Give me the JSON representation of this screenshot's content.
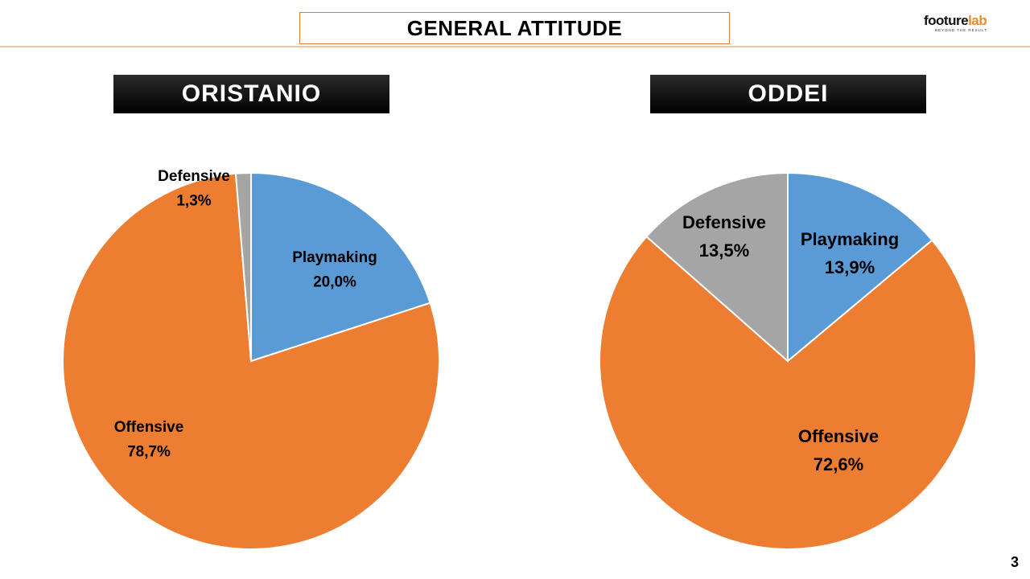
{
  "header": {
    "title": "GENERAL ATTITUDE",
    "logo_part1": "foot",
    "logo_part2": "ure",
    "logo_part3": "lab",
    "logo_tagline": "BEYOND THE RESULT"
  },
  "page_number": "3",
  "colors": {
    "playmaking": "#5b9bd5",
    "offensive": "#ed7d31",
    "defensive": "#a5a5a5",
    "accent": "#e07b30"
  },
  "chart_data": [
    {
      "type": "pie",
      "title": "ORISTANIO",
      "categories": [
        "Playmaking",
        "Offensive",
        "Defensive"
      ],
      "values": [
        20.0,
        78.7,
        1.3
      ],
      "value_labels": [
        "20,0%",
        "78,7%",
        "1,3%"
      ]
    },
    {
      "type": "pie",
      "title": "ODDEI",
      "categories": [
        "Playmaking",
        "Offensive",
        "Defensive"
      ],
      "values": [
        13.9,
        72.6,
        13.5
      ],
      "value_labels": [
        "13,9%",
        "72,6%",
        "13,5%"
      ]
    }
  ]
}
